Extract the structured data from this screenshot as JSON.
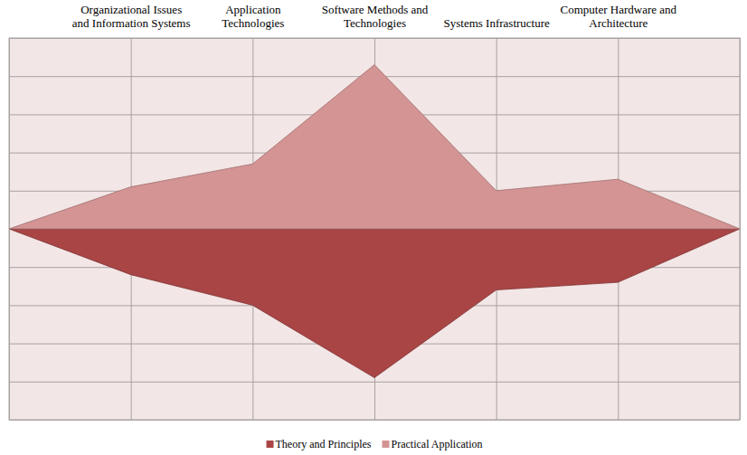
{
  "chart_data": {
    "type": "area",
    "categories": [
      null,
      "Organizational Issues\nand Information Systems",
      "Application\nTechnologies",
      "Software Methods and\nTechnologies",
      "Systems Infrastructure",
      "Computer Hardware and\nArchitecture",
      null
    ],
    "series": [
      {
        "name": "Theory and Principles",
        "color": "#a94545",
        "values": [
          0,
          -1.2,
          -2.0,
          -3.9,
          -1.6,
          -1.4,
          0
        ]
      },
      {
        "name": "Practical Application",
        "color": "#d39493",
        "values": [
          0,
          1.1,
          1.7,
          4.3,
          1.0,
          1.3,
          0
        ]
      }
    ],
    "ylim": [
      -5,
      5
    ],
    "yticks": [
      -5,
      -4,
      -3,
      -2,
      -1,
      0,
      1,
      2,
      3,
      4,
      5
    ],
    "grid": true,
    "tick_labels": "x",
    "legend": "bottom"
  }
}
